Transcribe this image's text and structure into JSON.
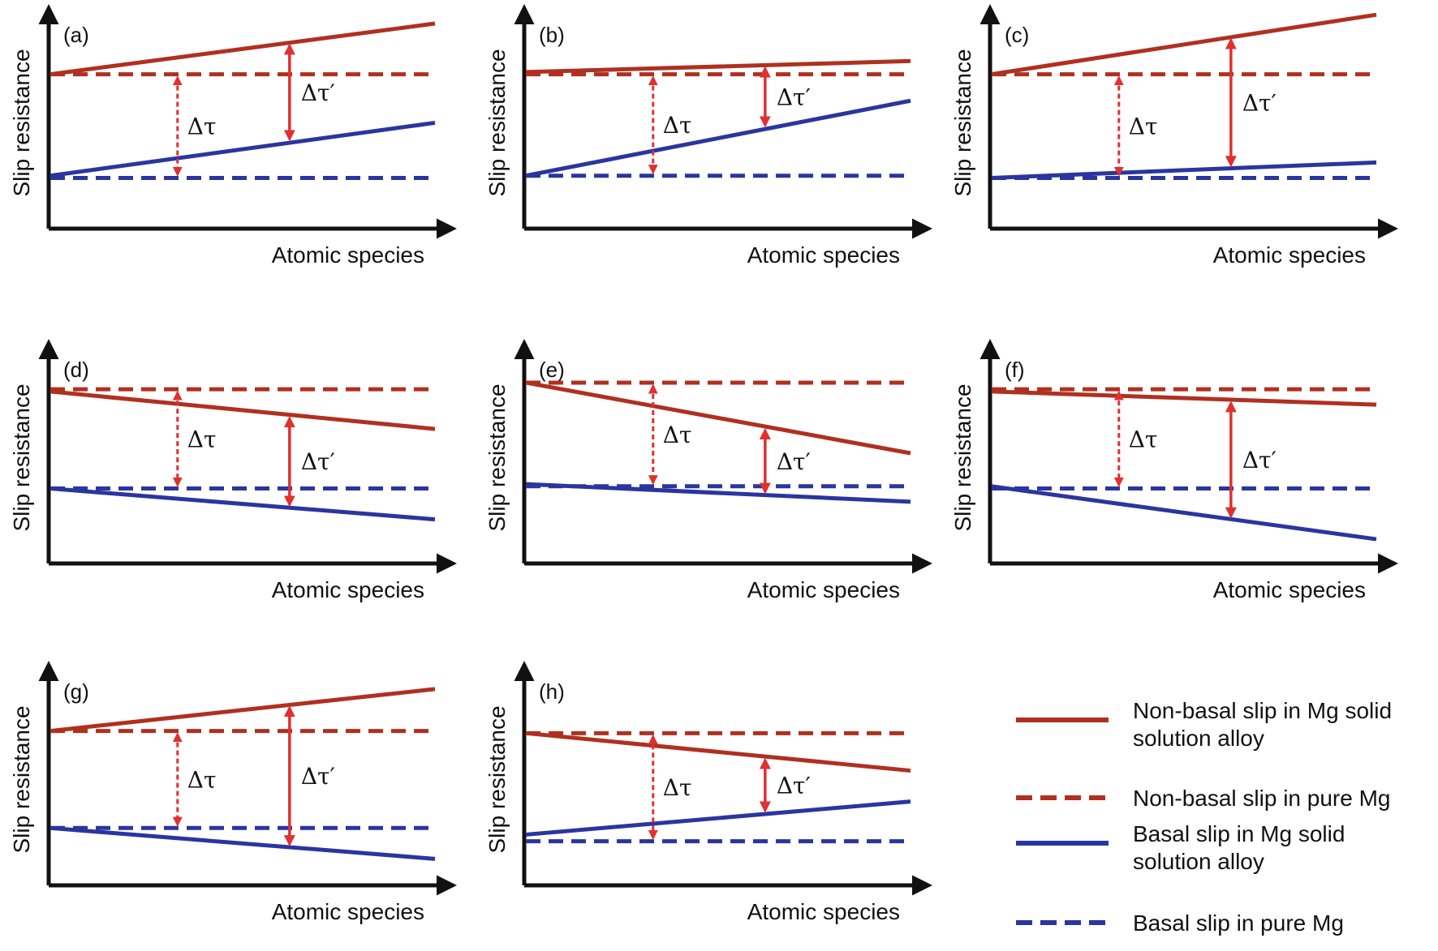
{
  "axis": {
    "y_label": "Slip resistance",
    "x_label": "Atomic species"
  },
  "delta_labels": {
    "delta_tau": "Δτ",
    "delta_tau_prime": "Δτ′"
  },
  "colors": {
    "non_basal": "#b03020",
    "basal": "#2b35a0",
    "arrow": "#e03030",
    "axis": "#111111"
  },
  "panels": [
    {
      "label": "(a)",
      "nonbasal_pure": 0.7,
      "nonbasal_alloy": [
        0.7,
        0.93
      ],
      "basal_pure": 0.23,
      "basal_alloy": [
        0.24,
        0.48
      ]
    },
    {
      "label": "(b)",
      "nonbasal_pure": 0.7,
      "nonbasal_alloy": [
        0.71,
        0.76
      ],
      "basal_pure": 0.24,
      "basal_alloy": [
        0.24,
        0.58
      ]
    },
    {
      "label": "(c)",
      "nonbasal_pure": 0.7,
      "nonbasal_alloy": [
        0.7,
        0.97
      ],
      "basal_pure": 0.23,
      "basal_alloy": [
        0.23,
        0.3
      ]
    },
    {
      "label": "(d)",
      "nonbasal_pure": 0.79,
      "nonbasal_alloy": [
        0.78,
        0.61
      ],
      "basal_pure": 0.34,
      "basal_alloy": [
        0.34,
        0.2
      ]
    },
    {
      "label": "(e)",
      "nonbasal_pure": 0.82,
      "nonbasal_alloy": [
        0.82,
        0.5
      ],
      "basal_pure": 0.35,
      "basal_alloy": [
        0.36,
        0.28
      ]
    },
    {
      "label": "(f)",
      "nonbasal_pure": 0.79,
      "nonbasal_alloy": [
        0.78,
        0.72
      ],
      "basal_pure": 0.34,
      "basal_alloy": [
        0.35,
        0.11
      ]
    },
    {
      "label": "(g)",
      "nonbasal_pure": 0.7,
      "nonbasal_alloy": [
        0.7,
        0.89
      ],
      "basal_pure": 0.26,
      "basal_alloy": [
        0.26,
        0.12
      ]
    },
    {
      "label": "(h)",
      "nonbasal_pure": 0.69,
      "nonbasal_alloy": [
        0.69,
        0.52
      ],
      "basal_pure": 0.2,
      "basal_alloy": [
        0.23,
        0.38
      ]
    }
  ],
  "legend": [
    {
      "key": "nonbasal_alloy",
      "text_lines": [
        "Non-basal slip in Mg solid",
        "solution alloy"
      ]
    },
    {
      "key": "nonbasal_pure",
      "text_lines": [
        "Non-basal slip in pure Mg"
      ]
    },
    {
      "key": "basal_alloy",
      "text_lines": [
        "Basal slip in Mg solid",
        "solution alloy"
      ]
    },
    {
      "key": "basal_pure",
      "text_lines": [
        "Basal slip in pure Mg"
      ]
    }
  ]
}
